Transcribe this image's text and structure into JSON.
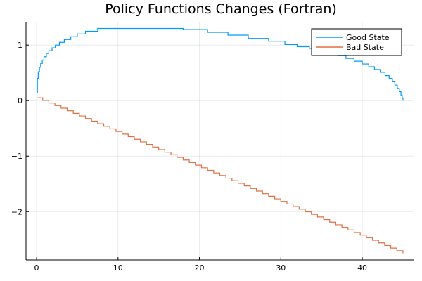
{
  "chart_data": {
    "type": "line",
    "title": "Policy Functions Changes (Fortran)",
    "xlabel": "",
    "ylabel": "",
    "xlim": [
      -1.3,
      46.3
    ],
    "ylim": [
      -2.87,
      1.42
    ],
    "xticks": [
      0,
      10,
      20,
      30,
      40
    ],
    "xtick_labels": [
      "0",
      "10",
      "20",
      "30",
      "40"
    ],
    "yticks": [
      -2,
      -1,
      0,
      1
    ],
    "ytick_labels": [
      "−2",
      "−1",
      "0",
      "1"
    ],
    "grid": true,
    "legend_position": "top-right",
    "step": true,
    "series": [
      {
        "name": "Good State",
        "color": "#009AF9",
        "x": [
          0.0,
          0.1,
          0.2,
          0.35,
          0.5,
          0.7,
          0.9,
          1.2,
          1.5,
          1.9,
          2.3,
          2.8,
          3.4,
          4.2,
          5.0,
          6.0,
          7.5,
          9.0,
          12.0,
          15.0,
          18.0,
          21.0,
          23.5,
          26.0,
          28.5,
          30.5,
          32.0,
          33.5,
          35.0,
          36.0,
          37.0,
          38.0,
          39.0,
          40.0,
          40.8,
          41.5,
          42.2,
          42.8,
          43.3,
          43.7,
          44.0,
          44.3,
          44.55,
          44.75,
          44.9,
          45.0
        ],
        "y": [
          0.14,
          0.4,
          0.52,
          0.6,
          0.67,
          0.73,
          0.79,
          0.85,
          0.9,
          0.95,
          1.0,
          1.05,
          1.1,
          1.15,
          1.2,
          1.25,
          1.3,
          1.3,
          1.3,
          1.3,
          1.28,
          1.23,
          1.18,
          1.12,
          1.07,
          1.01,
          0.97,
          0.94,
          0.9,
          0.86,
          0.81,
          0.76,
          0.71,
          0.66,
          0.61,
          0.56,
          0.51,
          0.45,
          0.4,
          0.34,
          0.28,
          0.22,
          0.16,
          0.1,
          0.05,
          0.0
        ]
      },
      {
        "name": "Bad State",
        "color": "#E26F46",
        "x_start": 0.0,
        "x_end": 45.0,
        "y_start": 0.05,
        "y_end": -2.75,
        "steps": 60
      }
    ]
  }
}
